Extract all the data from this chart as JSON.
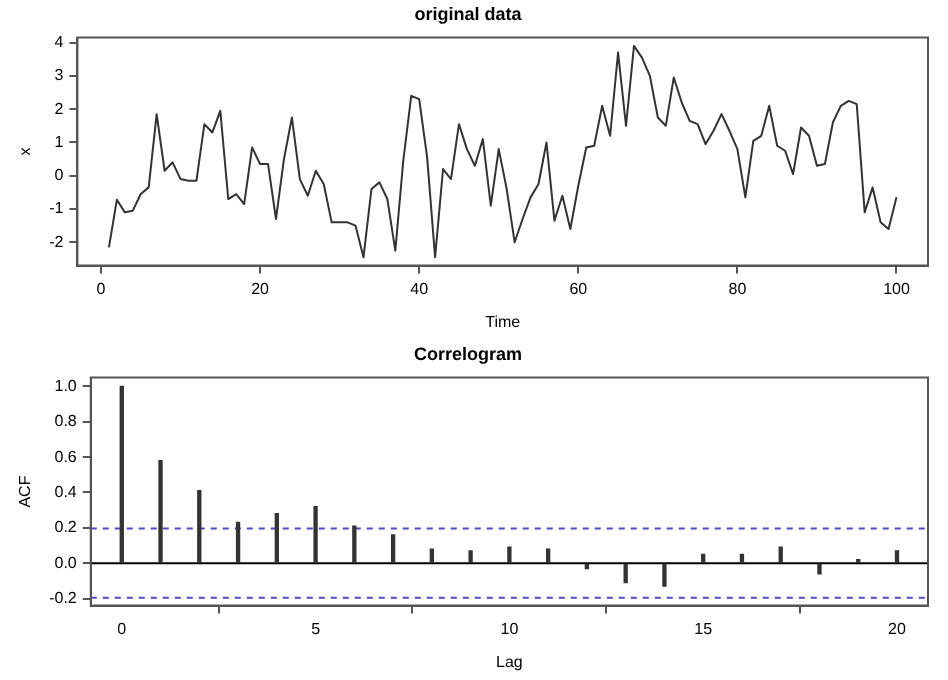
{
  "chart_data": [
    {
      "type": "line",
      "title": "original data",
      "xlabel": "Time",
      "ylabel": "x",
      "x": [
        1,
        2,
        3,
        4,
        5,
        6,
        7,
        8,
        9,
        10,
        11,
        12,
        13,
        14,
        15,
        16,
        17,
        18,
        19,
        20,
        21,
        22,
        23,
        24,
        25,
        26,
        27,
        28,
        29,
        30,
        31,
        32,
        33,
        34,
        35,
        36,
        37,
        38,
        39,
        40,
        41,
        42,
        43,
        44,
        45,
        46,
        47,
        48,
        49,
        50,
        51,
        52,
        53,
        54,
        55,
        56,
        57,
        58,
        59,
        60,
        61,
        62,
        63,
        64,
        65,
        66,
        67,
        68,
        69,
        70,
        71,
        72,
        73,
        74,
        75,
        76,
        77,
        78,
        79,
        80,
        81,
        82,
        83,
        84,
        85,
        86,
        87,
        88,
        89,
        90,
        91,
        92,
        93,
        94,
        95,
        96,
        97,
        98,
        99,
        100
      ],
      "series": [
        {
          "color": "#333333",
          "values": [
            -2.15,
            -0.72,
            -1.1,
            -1.05,
            -0.55,
            -0.35,
            1.85,
            0.15,
            0.4,
            -0.1,
            -0.15,
            -0.15,
            1.55,
            1.3,
            1.95,
            -0.7,
            -0.55,
            -0.85,
            0.85,
            0.35,
            0.35,
            -1.3,
            0.5,
            1.75,
            -0.1,
            -0.6,
            0.15,
            -0.25,
            -1.4,
            -1.4,
            -1.4,
            -1.5,
            -2.45,
            -0.4,
            -0.2,
            -0.7,
            -2.25,
            0.45,
            2.4,
            2.3,
            0.55,
            -2.45,
            0.2,
            -0.1,
            1.55,
            0.8,
            0.3,
            1.1,
            -0.9,
            0.8,
            -0.4,
            -2.0,
            -1.3,
            -0.65,
            -0.25,
            1.0,
            -1.35,
            -0.6,
            -1.6,
            -0.3,
            0.85,
            0.9,
            2.1,
            1.2,
            3.7,
            1.5,
            3.9,
            3.55,
            3.0,
            1.75,
            1.5,
            2.95,
            2.2,
            1.65,
            1.55,
            0.95,
            1.35,
            1.85,
            1.35,
            0.8,
            -0.65,
            1.05,
            1.2,
            2.1,
            0.9,
            0.75,
            0.05,
            1.45,
            1.2,
            0.3,
            0.35,
            1.6,
            2.1,
            2.25,
            2.15,
            -1.1,
            -0.35,
            -1.4,
            -1.6,
            -0.65
          ]
        }
      ],
      "xlim": [
        -2.96,
        103.96
      ],
      "xticks": [
        0,
        20,
        40,
        60,
        80,
        100
      ],
      "ylim": [
        -2.7,
        4.15
      ],
      "yticks": [
        -2,
        -1,
        0,
        1,
        2,
        3,
        4
      ],
      "grid": false,
      "legend": false,
      "marker": "none",
      "line_style": "solid"
    },
    {
      "type": "bar",
      "title": "Correlogram",
      "xlabel": "Lag",
      "ylabel": "ACF",
      "x": [
        0,
        1,
        2,
        3,
        4,
        5,
        6,
        7,
        8,
        9,
        10,
        11,
        12,
        13,
        14,
        15,
        16,
        17,
        18,
        19,
        20
      ],
      "series": [
        {
          "color": "#333333",
          "values": [
            1.0,
            0.58,
            0.41,
            0.23,
            0.28,
            0.32,
            0.21,
            0.16,
            0.08,
            0.07,
            0.09,
            0.08,
            -0.03,
            -0.11,
            -0.13,
            0.05,
            0.05,
            0.09,
            -0.06,
            0.02,
            0.07
          ]
        }
      ],
      "xlim": [
        -0.8,
        20.8
      ],
      "xticks": [
        0,
        5,
        10,
        15,
        20
      ],
      "ylim": [
        -0.24,
        1.05
      ],
      "yticks": [
        -0.2,
        {
          "value": 0,
          "label": "0.0"
        },
        0.2,
        0.4,
        0.6,
        0.8,
        {
          "value": 1,
          "label": "1.0"
        }
      ],
      "ref_lines": [
        {
          "axis": "y",
          "value": 0,
          "color": "#000000",
          "line_style": "solid"
        },
        {
          "axis": "y",
          "value": 0.196,
          "color": "#4b4bd0",
          "line_style": "dashed"
        },
        {
          "axis": "y",
          "value": -0.196,
          "color": "#4b4bd0",
          "line_style": "dashed"
        }
      ],
      "grid": false,
      "legend": false
    }
  ]
}
